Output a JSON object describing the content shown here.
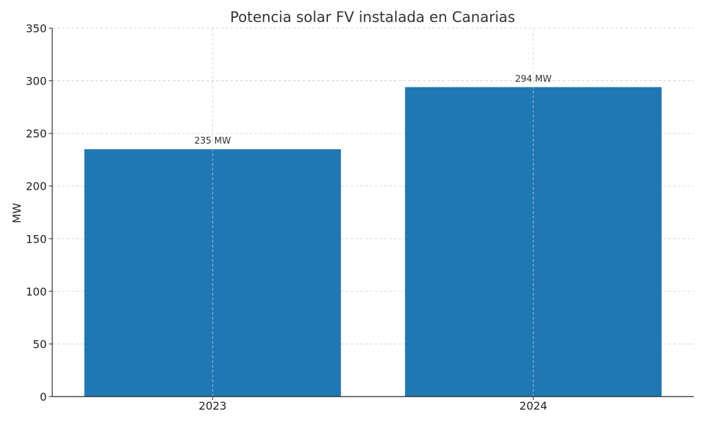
{
  "chart_data": {
    "type": "bar",
    "title": "Potencia solar FV instalada en Canarias",
    "xlabel": "",
    "ylabel": "MW",
    "categories": [
      "2023",
      "2024"
    ],
    "values": [
      235,
      294
    ],
    "data_labels": [
      "235 MW",
      "294 MW"
    ],
    "ylim": [
      0,
      350
    ],
    "yticks": [
      0,
      50,
      100,
      150,
      200,
      250,
      300,
      350
    ],
    "grid": true,
    "bar_color": "#1f77b4"
  }
}
